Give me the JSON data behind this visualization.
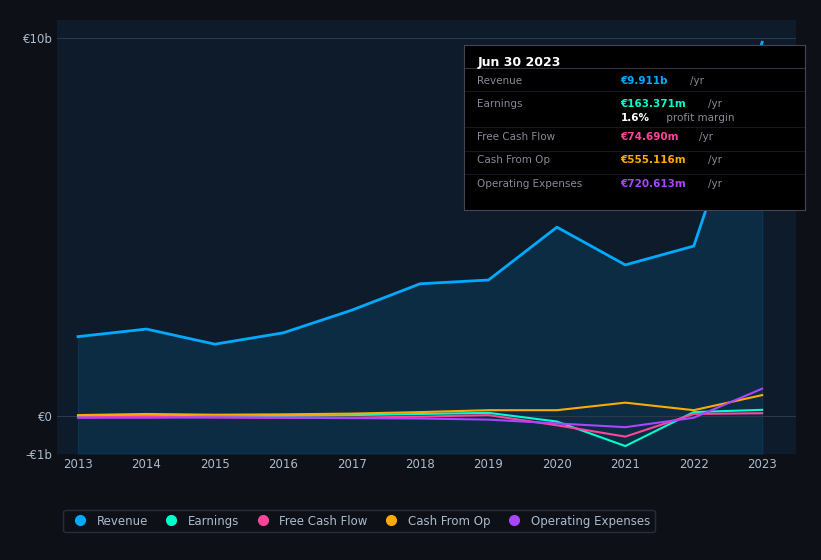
{
  "bg_color": "#0d1117",
  "plot_bg_color": "#0d1b2a",
  "years": [
    2013,
    2014,
    2015,
    2016,
    2017,
    2018,
    2019,
    2020,
    2021,
    2022,
    2023
  ],
  "revenue": [
    2.1,
    2.3,
    1.9,
    2.2,
    2.8,
    3.5,
    3.6,
    5.0,
    4.0,
    4.5,
    9.9
  ],
  "earnings": [
    -0.02,
    0.02,
    -0.02,
    0.0,
    0.02,
    0.05,
    0.08,
    -0.15,
    -0.8,
    0.1,
    0.16
  ],
  "free_cash_flow": [
    -0.04,
    -0.02,
    -0.04,
    -0.05,
    -0.05,
    -0.02,
    0.02,
    -0.25,
    -0.55,
    0.05,
    0.07
  ],
  "cash_from_op": [
    0.02,
    0.05,
    0.03,
    0.04,
    0.06,
    0.1,
    0.15,
    0.15,
    0.35,
    0.15,
    0.55
  ],
  "operating_expenses": [
    -0.05,
    -0.05,
    -0.04,
    -0.05,
    -0.06,
    -0.07,
    -0.1,
    -0.2,
    -0.3,
    -0.05,
    0.72
  ],
  "revenue_color": "#00aaff",
  "earnings_color": "#00ffcc",
  "fcf_color": "#ff4499",
  "cashop_color": "#ffaa00",
  "opex_color": "#aa44ff",
  "grid_color": "#2a3a4a",
  "text_color": "#aabbcc",
  "ylim": [
    -1.0,
    10.5
  ],
  "yticks": [
    -1.0,
    0.0,
    10.0
  ],
  "ytick_labels": [
    "-€1b",
    "€0",
    "€10b"
  ],
  "info_box": {
    "title": "Jun 30 2023",
    "rows": [
      {
        "label": "Revenue",
        "value": "€9.911b",
        "unit": "/yr",
        "value_color": "#00aaff"
      },
      {
        "label": "Earnings",
        "value": "€163.371m",
        "unit": "/yr",
        "value_color": "#00ffcc"
      },
      {
        "label": "",
        "value": "1.6%",
        "unit": " profit margin",
        "value_color": "#ffffff"
      },
      {
        "label": "Free Cash Flow",
        "value": "€74.690m",
        "unit": "/yr",
        "value_color": "#ff4499"
      },
      {
        "label": "Cash From Op",
        "value": "€555.116m",
        "unit": "/yr",
        "value_color": "#ffaa00"
      },
      {
        "label": "Operating Expenses",
        "value": "€720.613m",
        "unit": "/yr",
        "value_color": "#aa44ff"
      }
    ]
  },
  "legend": [
    {
      "label": "Revenue",
      "color": "#00aaff"
    },
    {
      "label": "Earnings",
      "color": "#00ffcc"
    },
    {
      "label": "Free Cash Flow",
      "color": "#ff4499"
    },
    {
      "label": "Cash From Op",
      "color": "#ffaa00"
    },
    {
      "label": "Operating Expenses",
      "color": "#aa44ff"
    }
  ]
}
